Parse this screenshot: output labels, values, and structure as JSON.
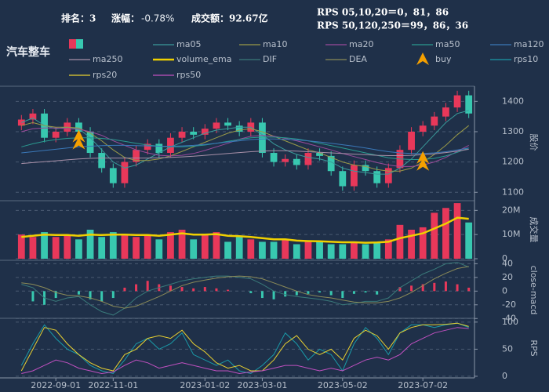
{
  "header": {
    "rank": "排名：3",
    "change_label": "涨幅：",
    "change": "-0.78%",
    "change_color": "#30e030",
    "turnover": "成交额：92.67亿",
    "rps_short": "RPS 05,10,20＝0，81，86",
    "rps_long": "RPS 50,120,250＝99，86，36"
  },
  "chart_data": {
    "type": "candlestick",
    "title": "汽车整车",
    "ylabel": "股价",
    "up_color": "#e8385a",
    "down_color": "#38c8b0",
    "categories": [
      null,
      null,
      null,
      "2022-09-01",
      null,
      null,
      null,
      null,
      "2022-11-01",
      null,
      null,
      null,
      null,
      null,
      null,
      null,
      "2023-01-02",
      null,
      null,
      null,
      null,
      "2023-03-01",
      null,
      null,
      null,
      null,
      null,
      null,
      "2023-05-02",
      null,
      null,
      null,
      null,
      null,
      null,
      "2023-07-02",
      null,
      null,
      null,
      null
    ],
    "open": [
      1320,
      1340,
      1360,
      1280,
      1300,
      1330,
      1300,
      1230,
      1180,
      1130,
      1200,
      1240,
      1260,
      1230,
      1280,
      1300,
      1290,
      1310,
      1330,
      1320,
      1300,
      1330,
      1230,
      1200,
      1210,
      1190,
      1230,
      1220,
      1170,
      1120,
      1190,
      1170,
      1130,
      1180,
      1240,
      1300,
      1320,
      1350,
      1380,
      1420
    ],
    "high": [
      1355,
      1375,
      1375,
      1315,
      1345,
      1345,
      1315,
      1245,
      1195,
      1215,
      1255,
      1275,
      1275,
      1295,
      1315,
      1315,
      1325,
      1345,
      1345,
      1335,
      1345,
      1345,
      1245,
      1225,
      1225,
      1245,
      1245,
      1235,
      1185,
      1205,
      1205,
      1185,
      1195,
      1255,
      1315,
      1335,
      1365,
      1395,
      1435,
      1435
    ],
    "low": [
      1305,
      1325,
      1265,
      1265,
      1285,
      1285,
      1215,
      1165,
      1115,
      1115,
      1185,
      1225,
      1215,
      1215,
      1265,
      1275,
      1275,
      1295,
      1305,
      1285,
      1285,
      1215,
      1185,
      1185,
      1175,
      1175,
      1205,
      1155,
      1105,
      1105,
      1155,
      1115,
      1115,
      1165,
      1225,
      1285,
      1305,
      1335,
      1365,
      1345
    ],
    "close": [
      1340,
      1360,
      1280,
      1300,
      1330,
      1300,
      1230,
      1180,
      1130,
      1200,
      1240,
      1260,
      1230,
      1280,
      1300,
      1290,
      1310,
      1330,
      1320,
      1300,
      1330,
      1230,
      1200,
      1210,
      1190,
      1230,
      1220,
      1170,
      1120,
      1190,
      1170,
      1130,
      1180,
      1240,
      1300,
      1320,
      1350,
      1380,
      1420,
      1360
    ],
    "ylim": [
      1080,
      1450
    ],
    "yticks": [
      1100,
      1200,
      1300,
      1400
    ],
    "grid": true,
    "lines": [
      {
        "name": "ma05",
        "color": "#3a9a9a",
        "values": [
          1330,
          1345,
          1320,
          1310,
          1315,
          1310,
          1280,
          1240,
          1200,
          1180,
          1190,
          1210,
          1230,
          1250,
          1265,
          1280,
          1295,
          1305,
          1310,
          1315,
          1315,
          1290,
          1260,
          1240,
          1225,
          1215,
          1210,
          1200,
          1180,
          1170,
          1165,
          1160,
          1160,
          1180,
          1210,
          1250,
          1290,
          1330,
          1360,
          1370
        ]
      },
      {
        "name": "ma10",
        "color": "#9a9a48",
        "values": [
          1320,
          1330,
          1320,
          1315,
          1315,
          1312,
          1295,
          1270,
          1240,
          1215,
          1205,
          1205,
          1210,
          1220,
          1235,
          1250,
          1265,
          1280,
          1295,
          1305,
          1310,
          1300,
          1285,
          1270,
          1255,
          1240,
          1230,
          1215,
          1200,
          1190,
          1185,
          1175,
          1170,
          1170,
          1180,
          1200,
          1225,
          1255,
          1290,
          1320
        ]
      },
      {
        "name": "ma20",
        "color": "#9a4a9a",
        "values": [
          1300,
          1310,
          1312,
          1312,
          1310,
          1308,
          1300,
          1288,
          1270,
          1255,
          1240,
          1230,
          1222,
          1220,
          1222,
          1228,
          1238,
          1250,
          1262,
          1275,
          1285,
          1288,
          1285,
          1278,
          1270,
          1260,
          1250,
          1240,
          1228,
          1218,
          1208,
          1198,
          1190,
          1185,
          1185,
          1190,
          1200,
          1215,
          1235,
          1255
        ]
      },
      {
        "name": "ma50",
        "color": "#2a9a90",
        "values": [
          1250,
          1260,
          1268,
          1274,
          1278,
          1280,
          1280,
          1278,
          1274,
          1268,
          1262,
          1256,
          1252,
          1250,
          1250,
          1252,
          1256,
          1262,
          1268,
          1274,
          1280,
          1282,
          1282,
          1280,
          1276,
          1270,
          1262,
          1254,
          1246,
          1238,
          1230,
          1222,
          1214,
          1210,
          1208,
          1208,
          1212,
          1220,
          1232,
          1246
        ]
      },
      {
        "name": "ma120",
        "color": "#3a78b8",
        "values": [
          1230,
          1234,
          1238,
          1242,
          1246,
          1250,
          1252,
          1254,
          1255,
          1255,
          1254,
          1253,
          1252,
          1252,
          1253,
          1255,
          1258,
          1262,
          1266,
          1270,
          1274,
          1276,
          1276,
          1275,
          1273,
          1270,
          1266,
          1262,
          1257,
          1252,
          1246,
          1240,
          1234,
          1230,
          1228,
          1228,
          1230,
          1234,
          1240,
          1246
        ]
      },
      {
        "name": "ma250",
        "color": "#a890a8",
        "values": [
          1195,
          1198,
          1201,
          1204,
          1207,
          1210,
          1212,
          1213,
          1213,
          1213,
          1213,
          1213,
          1214,
          1215,
          1217,
          1219,
          1222,
          1225,
          1228,
          1231,
          1234,
          1236,
          1237,
          1237,
          1236,
          1234,
          1232,
          1230,
          1228,
          1226,
          1224,
          1222,
          1221,
          1221,
          1222,
          1224,
          1227,
          1231,
          1236,
          1242
        ]
      }
    ],
    "buy": {
      "name": "buy",
      "color": "#f5a000",
      "values": [
        null,
        null,
        null,
        null,
        null,
        1275,
        null,
        null,
        null,
        null,
        null,
        null,
        null,
        null,
        null,
        null,
        null,
        null,
        null,
        null,
        null,
        null,
        null,
        null,
        null,
        null,
        null,
        null,
        null,
        null,
        null,
        null,
        null,
        null,
        null,
        1205,
        null,
        null,
        null,
        null
      ]
    },
    "volume": {
      "ylabel": "成交量",
      "ylim": [
        0,
        24000000
      ],
      "yticks": [
        0,
        {
          "value": 10000000,
          "label": "10M"
        },
        {
          "value": 20000000,
          "label": "20M"
        }
      ],
      "values": [
        10000000,
        9000000,
        11000000,
        9000000,
        10000000,
        8000000,
        12000000,
        9000000,
        11000000,
        10000000,
        9000000,
        10000000,
        8000000,
        11000000,
        12000000,
        8000000,
        10000000,
        11000000,
        7000000,
        9000000,
        8000000,
        7000000,
        7000000,
        8000000,
        6000000,
        7000000,
        7000000,
        6000000,
        6000000,
        7000000,
        6000000,
        7000000,
        8000000,
        14000000,
        12000000,
        13000000,
        19000000,
        21000000,
        23000000,
        15000000
      ],
      "ema": {
        "name": "volume_ema",
        "color": "#f0d000",
        "values": [
          9000000,
          9500000,
          10000000,
          9800000,
          9800000,
          9500000,
          10000000,
          9800000,
          10000000,
          10000000,
          9800000,
          9800000,
          9500000,
          10000000,
          10500000,
          10000000,
          10000000,
          10200000,
          9500000,
          9300000,
          9000000,
          8500000,
          8000000,
          8000000,
          7500000,
          7300000,
          7200000,
          7000000,
          6800000,
          6800000,
          6600000,
          6700000,
          7000000,
          8500000,
          9500000,
          10500000,
          12500000,
          14500000,
          17000000,
          16500000
        ]
      }
    },
    "macd": {
      "ylabel": "close-macd",
      "ylim": [
        -42,
        45
      ],
      "yticks": [
        40,
        20,
        0,
        -20,
        -40
      ],
      "values": [
        0,
        -15,
        -20,
        -10,
        0,
        -5,
        -12,
        -15,
        -10,
        5,
        10,
        15,
        10,
        8,
        6,
        4,
        6,
        4,
        2,
        0,
        -3,
        -10,
        -12,
        -8,
        -6,
        -4,
        -2,
        -6,
        -10,
        -4,
        -2,
        -5,
        0,
        6,
        8,
        10,
        12,
        14,
        10,
        5
      ],
      "lines": [
        {
          "name": "DIF",
          "color": "#3a7a7a",
          "values": [
            10,
            5,
            -10,
            -15,
            -10,
            -8,
            -20,
            -30,
            -35,
            -25,
            -10,
            0,
            5,
            10,
            15,
            18,
            20,
            22,
            22,
            20,
            18,
            10,
            0,
            -5,
            -8,
            -10,
            -12,
            -15,
            -20,
            -18,
            -15,
            -15,
            -10,
            5,
            15,
            25,
            32,
            40,
            42,
            35
          ]
        },
        {
          "name": "DEA",
          "color": "#8a8a58",
          "values": [
            12,
            10,
            5,
            -2,
            -6,
            -7,
            -10,
            -15,
            -22,
            -25,
            -22,
            -15,
            -8,
            0,
            8,
            13,
            16,
            19,
            21,
            22,
            21,
            18,
            12,
            6,
            0,
            -5,
            -8,
            -10,
            -13,
            -16,
            -17,
            -17,
            -15,
            -10,
            -2,
            8,
            18,
            26,
            33,
            36
          ]
        }
      ]
    },
    "rps": {
      "ylabel": "RPS",
      "ylim": [
        -3,
        107
      ],
      "yticks": [
        0,
        50,
        100
      ],
      "lines": [
        {
          "name": "rps10",
          "color": "#1a9aa8",
          "values": [
            20,
            60,
            95,
            70,
            50,
            40,
            20,
            10,
            5,
            30,
            60,
            70,
            50,
            60,
            80,
            40,
            30,
            20,
            30,
            10,
            5,
            20,
            40,
            80,
            60,
            30,
            50,
            40,
            10,
            60,
            90,
            70,
            40,
            80,
            95,
            95,
            90,
            95,
            98,
            90
          ]
        },
        {
          "name": "rps20",
          "color": "#e8d030",
          "values": [
            10,
            50,
            90,
            85,
            60,
            40,
            25,
            15,
            10,
            40,
            50,
            70,
            75,
            70,
            85,
            60,
            45,
            25,
            15,
            20,
            10,
            10,
            30,
            60,
            75,
            50,
            40,
            50,
            30,
            70,
            85,
            75,
            50,
            80,
            90,
            95,
            95,
            96,
            98,
            92
          ]
        },
        {
          "name": "rps50",
          "color": "#c050c0",
          "values": [
            5,
            10,
            20,
            30,
            25,
            15,
            10,
            5,
            8,
            20,
            30,
            25,
            15,
            20,
            25,
            20,
            15,
            10,
            10,
            5,
            8,
            10,
            15,
            20,
            20,
            15,
            10,
            15,
            10,
            20,
            30,
            35,
            30,
            40,
            60,
            70,
            80,
            85,
            90,
            88
          ]
        }
      ]
    }
  }
}
